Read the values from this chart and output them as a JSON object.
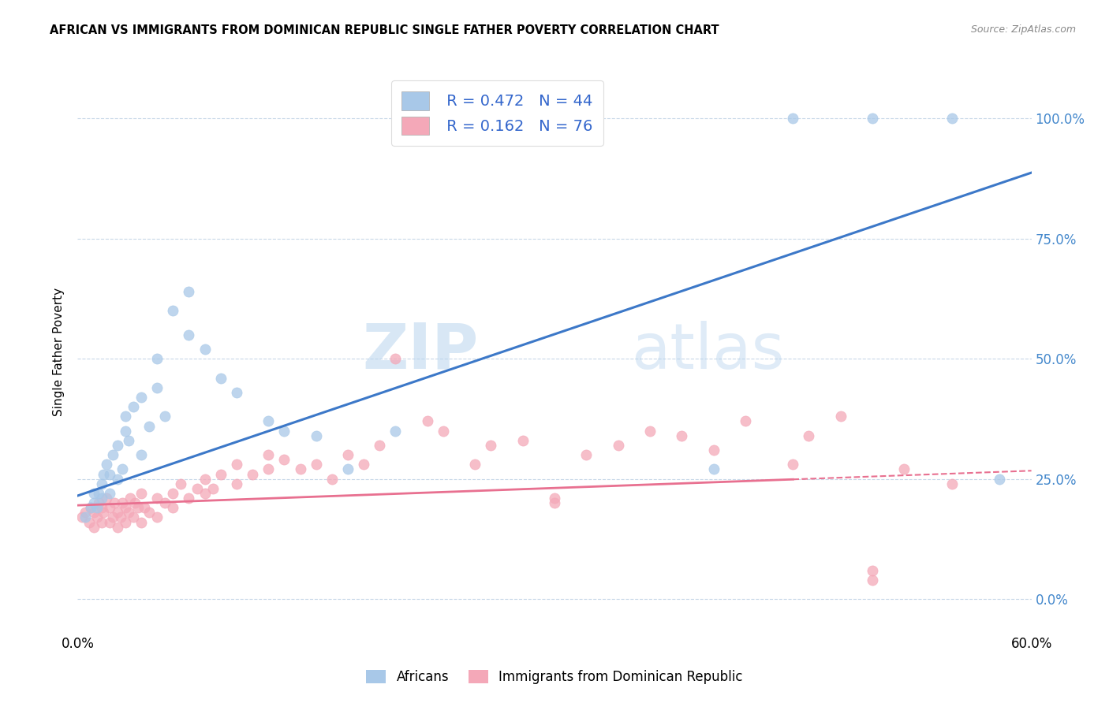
{
  "title": "AFRICAN VS IMMIGRANTS FROM DOMINICAN REPUBLIC SINGLE FATHER POVERTY CORRELATION CHART",
  "source": "Source: ZipAtlas.com",
  "ylabel": "Single Father Poverty",
  "legend_label1": "Africans",
  "legend_label2": "Immigrants from Dominican Republic",
  "legend_r1": "R = 0.472",
  "legend_n1": "N = 44",
  "legend_r2": "R = 0.162",
  "legend_n2": "N = 76",
  "xlim": [
    0.0,
    0.6
  ],
  "ylim": [
    -0.07,
    1.1
  ],
  "yticks": [
    0.0,
    0.25,
    0.5,
    0.75,
    1.0
  ],
  "ytick_labels": [
    "0.0%",
    "25.0%",
    "50.0%",
    "75.0%",
    "100.0%"
  ],
  "blue_color": "#a8c8e8",
  "pink_color": "#f4a8b8",
  "blue_line_color": "#3c78c8",
  "pink_line_color": "#e87090",
  "watermark_zip": "ZIP",
  "watermark_atlas": "atlas",
  "background_color": "#ffffff",
  "grid_color": "#c8d8e8",
  "blue_slope": 1.12,
  "blue_intercept": 0.215,
  "pink_slope": 0.12,
  "pink_intercept": 0.195,
  "pink_line_data_end": 0.45,
  "blue_points_x": [
    0.005,
    0.008,
    0.01,
    0.01,
    0.012,
    0.013,
    0.015,
    0.015,
    0.016,
    0.018,
    0.02,
    0.02,
    0.022,
    0.025,
    0.025,
    0.028,
    0.03,
    0.03,
    0.032,
    0.035,
    0.04,
    0.04,
    0.045,
    0.05,
    0.05,
    0.055,
    0.06,
    0.07,
    0.07,
    0.08,
    0.09,
    0.1,
    0.12,
    0.13,
    0.15,
    0.17,
    0.2,
    0.21,
    0.22,
    0.4,
    0.45,
    0.5,
    0.55,
    0.58
  ],
  "blue_points_y": [
    0.17,
    0.19,
    0.2,
    0.22,
    0.19,
    0.22,
    0.21,
    0.24,
    0.26,
    0.28,
    0.22,
    0.26,
    0.3,
    0.25,
    0.32,
    0.27,
    0.35,
    0.38,
    0.33,
    0.4,
    0.3,
    0.42,
    0.36,
    0.44,
    0.5,
    0.38,
    0.6,
    0.55,
    0.64,
    0.52,
    0.46,
    0.43,
    0.37,
    0.35,
    0.34,
    0.27,
    0.35,
    1.0,
    1.0,
    0.27,
    1.0,
    1.0,
    1.0,
    0.25
  ],
  "pink_points_x": [
    0.003,
    0.005,
    0.007,
    0.008,
    0.01,
    0.01,
    0.012,
    0.013,
    0.015,
    0.015,
    0.016,
    0.018,
    0.02,
    0.02,
    0.022,
    0.023,
    0.025,
    0.025,
    0.027,
    0.028,
    0.03,
    0.03,
    0.032,
    0.033,
    0.035,
    0.036,
    0.038,
    0.04,
    0.04,
    0.042,
    0.045,
    0.05,
    0.05,
    0.055,
    0.06,
    0.06,
    0.065,
    0.07,
    0.075,
    0.08,
    0.08,
    0.085,
    0.09,
    0.1,
    0.1,
    0.11,
    0.12,
    0.12,
    0.13,
    0.14,
    0.15,
    0.16,
    0.17,
    0.18,
    0.19,
    0.2,
    0.22,
    0.23,
    0.25,
    0.26,
    0.28,
    0.3,
    0.3,
    0.32,
    0.34,
    0.36,
    0.38,
    0.4,
    0.42,
    0.45,
    0.46,
    0.48,
    0.5,
    0.5,
    0.52,
    0.55
  ],
  "pink_points_y": [
    0.17,
    0.18,
    0.16,
    0.19,
    0.15,
    0.18,
    0.17,
    0.2,
    0.16,
    0.19,
    0.18,
    0.21,
    0.16,
    0.19,
    0.17,
    0.2,
    0.15,
    0.18,
    0.17,
    0.2,
    0.16,
    0.19,
    0.18,
    0.21,
    0.17,
    0.2,
    0.19,
    0.16,
    0.22,
    0.19,
    0.18,
    0.21,
    0.17,
    0.2,
    0.22,
    0.19,
    0.24,
    0.21,
    0.23,
    0.22,
    0.25,
    0.23,
    0.26,
    0.24,
    0.28,
    0.26,
    0.27,
    0.3,
    0.29,
    0.27,
    0.28,
    0.25,
    0.3,
    0.28,
    0.32,
    0.5,
    0.37,
    0.35,
    0.28,
    0.32,
    0.33,
    0.21,
    0.2,
    0.3,
    0.32,
    0.35,
    0.34,
    0.31,
    0.37,
    0.28,
    0.34,
    0.38,
    0.04,
    0.06,
    0.27,
    0.24
  ]
}
